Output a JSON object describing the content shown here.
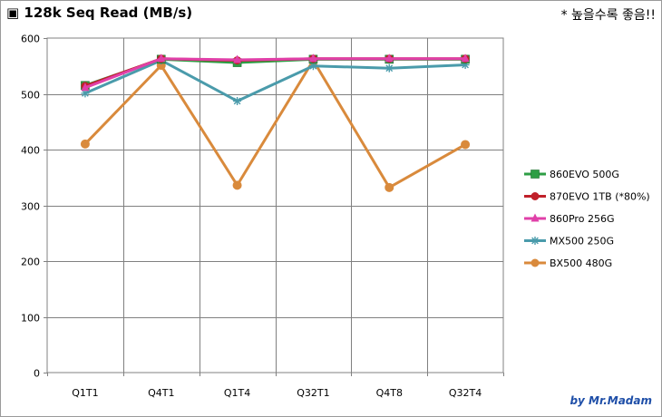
{
  "header": {
    "title": "▣ 128k Seq Read (MB/s)",
    "note": "* 높을수록 좋음!!"
  },
  "footer": {
    "credit": "by Mr.Madam"
  },
  "chart_data": {
    "type": "line",
    "title": "▣ 128k Seq Read (MB/s)",
    "xlabel": "",
    "ylabel": "",
    "categories": [
      "Q1T1",
      "Q4T1",
      "Q1T4",
      "Q32T1",
      "Q4T8",
      "Q32T4"
    ],
    "ylim": [
      0,
      600
    ],
    "yticks": [
      0,
      100,
      200,
      300,
      400,
      500,
      600
    ],
    "grid": true,
    "legend_position": "right",
    "series": [
      {
        "name": "860EVO 500G",
        "color": "#2e9e45",
        "marker": "square",
        "values": [
          515,
          562,
          556,
          562,
          562,
          562
        ]
      },
      {
        "name": "870EVO 1TB (*80%)",
        "color": "#c0202a",
        "marker": "circle",
        "values": [
          514,
          563,
          560,
          563,
          563,
          563
        ]
      },
      {
        "name": "860Pro 256G",
        "color": "#e040a8",
        "marker": "triangle",
        "values": [
          511,
          563,
          561,
          563,
          563,
          563
        ]
      },
      {
        "name": "MX500 250G",
        "color": "#4a9bab",
        "marker": "asterisk",
        "values": [
          501,
          560,
          487,
          550,
          546,
          552
        ]
      },
      {
        "name": "BX500 480G",
        "color": "#d98a3c",
        "marker": "circle",
        "values": [
          410,
          551,
          336,
          560,
          332,
          409
        ]
      }
    ]
  }
}
